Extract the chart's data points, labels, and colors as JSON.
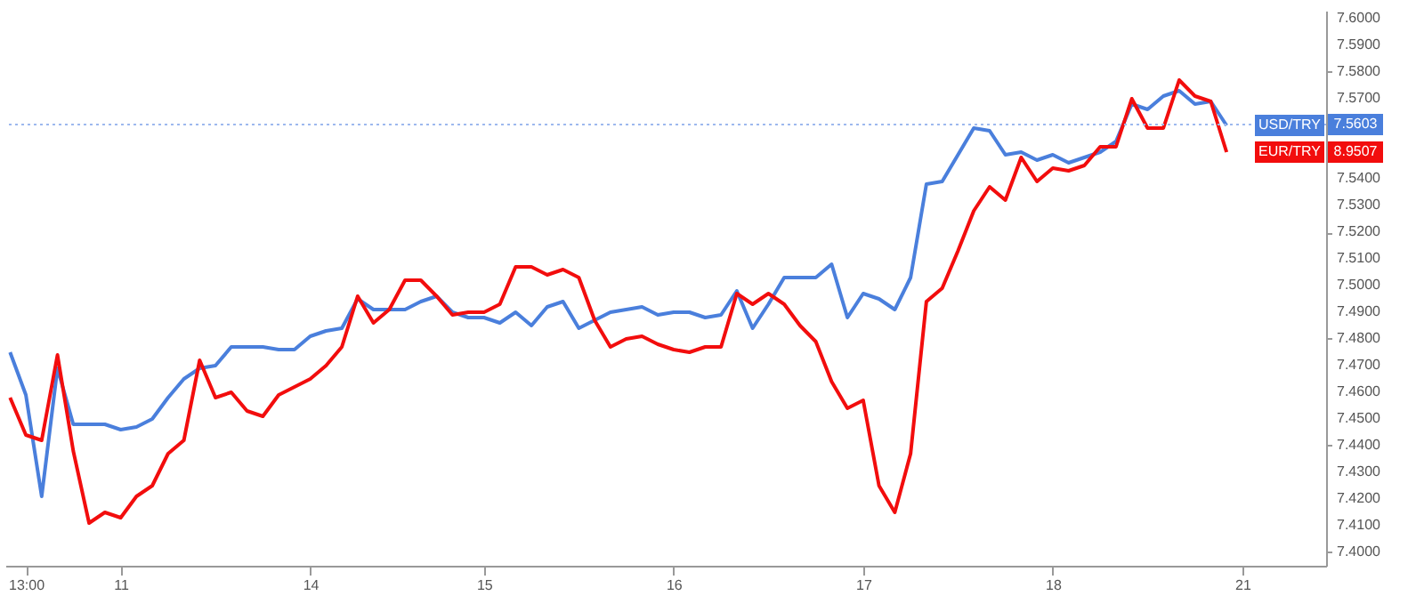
{
  "chart_data": {
    "type": "line",
    "categories": [
      null,
      "13:00",
      null,
      null,
      null,
      null,
      null,
      "11",
      null,
      null,
      null,
      null,
      null,
      null,
      null,
      null,
      null,
      null,
      null,
      "14",
      null,
      null,
      null,
      null,
      null,
      null,
      null,
      null,
      null,
      null,
      "15",
      null,
      null,
      null,
      null,
      null,
      null,
      null,
      null,
      null,
      null,
      null,
      "16",
      null,
      null,
      null,
      null,
      null,
      null,
      null,
      null,
      null,
      null,
      null,
      "17",
      null,
      null,
      null,
      null,
      null,
      null,
      null,
      null,
      null,
      null,
      null,
      "18",
      null,
      null,
      null,
      null,
      null,
      null,
      null,
      null,
      null,
      null,
      null,
      "21",
      null,
      null,
      null,
      null,
      null
    ],
    "series": [
      {
        "name": "USD/TRY",
        "color": "#4a7fdc",
        "values": [
          7.475,
          7.459,
          7.421,
          7.469,
          7.448,
          7.448,
          7.448,
          7.446,
          7.447,
          7.45,
          7.458,
          7.465,
          7.469,
          7.47,
          7.477,
          7.477,
          7.477,
          7.476,
          7.476,
          7.481,
          7.483,
          7.484,
          7.495,
          7.491,
          7.491,
          7.491,
          7.494,
          7.496,
          7.49,
          7.488,
          7.488,
          7.486,
          7.49,
          7.485,
          7.492,
          7.494,
          7.484,
          7.487,
          7.49,
          7.491,
          7.492,
          7.489,
          7.49,
          7.49,
          7.488,
          7.489,
          7.498,
          7.484,
          7.493,
          7.503,
          7.503,
          7.503,
          7.508,
          7.488,
          7.497,
          7.495,
          7.491,
          7.503,
          7.538,
          7.539,
          7.549,
          7.559,
          7.558,
          7.549,
          7.55,
          7.547,
          7.549,
          7.546,
          7.548,
          7.55,
          7.554,
          7.568,
          7.566,
          7.571,
          7.573,
          7.568,
          7.569,
          7.56,
          null,
          null,
          null,
          null,
          null,
          null
        ]
      },
      {
        "name": "EUR/TRY",
        "color": "#f20d0d",
        "values": [
          7.458,
          7.444,
          7.442,
          7.474,
          7.438,
          7.411,
          7.415,
          7.413,
          7.421,
          7.425,
          7.437,
          7.442,
          7.472,
          7.458,
          7.46,
          7.453,
          7.451,
          7.459,
          7.462,
          7.465,
          7.47,
          7.477,
          7.496,
          7.486,
          7.491,
          7.502,
          7.502,
          7.496,
          7.489,
          7.49,
          7.49,
          7.493,
          7.507,
          7.507,
          7.504,
          7.506,
          7.503,
          7.487,
          7.477,
          7.48,
          7.481,
          7.478,
          7.476,
          7.475,
          7.477,
          7.477,
          7.497,
          7.493,
          7.497,
          7.493,
          7.485,
          7.479,
          7.464,
          7.454,
          7.457,
          7.425,
          7.415,
          7.437,
          7.494,
          7.499,
          7.513,
          7.528,
          7.537,
          7.532,
          7.548,
          7.539,
          7.544,
          7.543,
          7.545,
          7.552,
          7.552,
          7.57,
          7.559,
          7.559,
          7.577,
          7.571,
          7.569,
          7.55,
          null,
          null,
          null,
          null,
          null,
          null
        ]
      }
    ],
    "ylim": [
      7.395,
      7.603
    ],
    "yticks": [
      {
        "value": 7.4,
        "label": "7.4000"
      },
      {
        "value": 7.41,
        "label": "7.4100"
      },
      {
        "value": 7.42,
        "label": "7.4200"
      },
      {
        "value": 7.43,
        "label": "7.4300"
      },
      {
        "value": 7.44,
        "label": "7.4400"
      },
      {
        "value": 7.45,
        "label": "7.4500"
      },
      {
        "value": 7.46,
        "label": "7.4600"
      },
      {
        "value": 7.47,
        "label": "7.4700"
      },
      {
        "value": 7.48,
        "label": "7.4800"
      },
      {
        "value": 7.49,
        "label": "7.4900"
      },
      {
        "value": 7.5,
        "label": "7.5000"
      },
      {
        "value": 7.51,
        "label": "7.5100"
      },
      {
        "value": 7.52,
        "label": "7.5200"
      },
      {
        "value": 7.53,
        "label": "7.5300"
      },
      {
        "value": 7.54,
        "label": "7.5400"
      },
      {
        "value": 7.57,
        "label": "7.5700"
      },
      {
        "value": 7.58,
        "label": "7.5800"
      },
      {
        "value": 7.59,
        "label": "7.5900"
      },
      {
        "value": 7.6,
        "label": "7.6000"
      }
    ],
    "ref_lines": [
      {
        "axis": "y",
        "value": 7.5603,
        "label": "7.5603",
        "color": "#9db8ee",
        "line_style": "dotted"
      }
    ],
    "annotations": [
      "8.9507"
    ],
    "legend": "right",
    "grid": false
  }
}
